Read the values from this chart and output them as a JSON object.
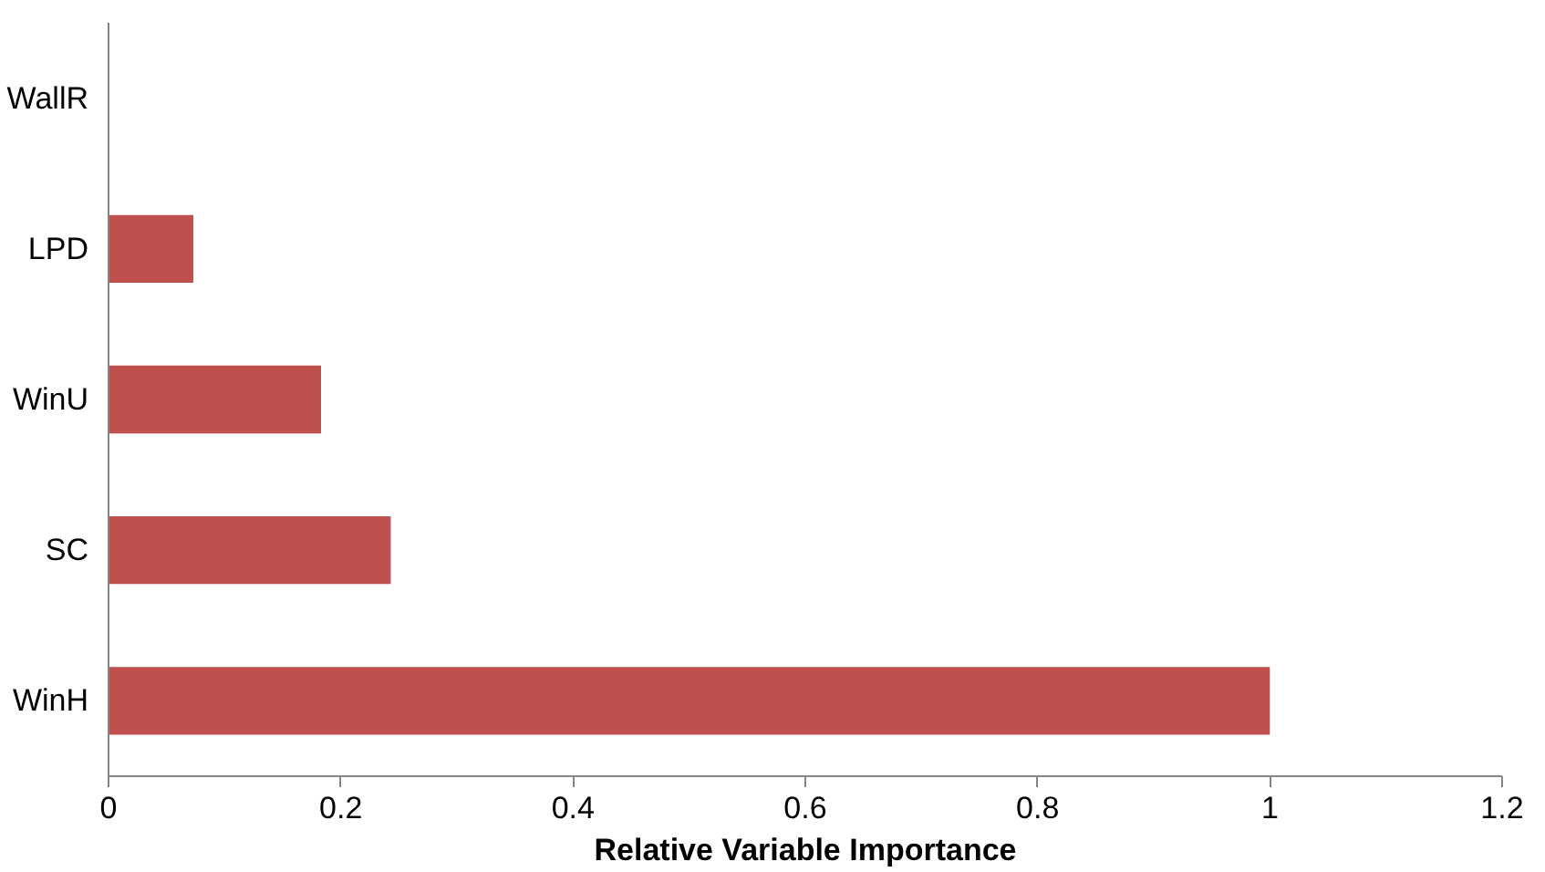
{
  "chart_data": {
    "type": "bar",
    "orientation": "horizontal",
    "xlabel": "Relative Variable Importance",
    "categories": [
      "WallR",
      "LPD",
      "WinU",
      "SC",
      "WinH"
    ],
    "values": [
      0,
      0.073,
      0.183,
      0.243,
      1.0
    ],
    "color": "#c0504d",
    "xlim": [
      0,
      1.2
    ],
    "xticks": [
      0,
      0.2,
      0.4,
      0.6,
      0.8,
      1,
      1.2
    ],
    "grid": false
  }
}
